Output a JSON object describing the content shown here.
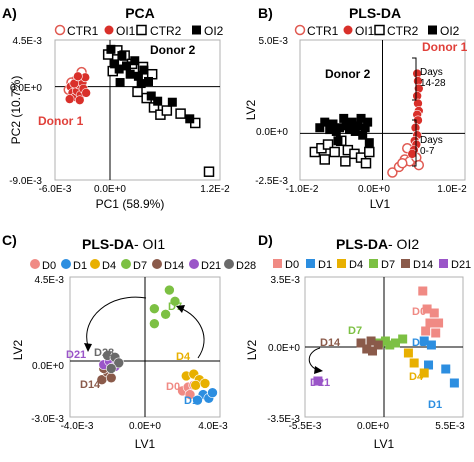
{
  "colors": {
    "ctr1": "#e05a52",
    "oi1": "#d9302a",
    "ctr2": "#000000",
    "oi2": "#000000",
    "d0": "#f08a84",
    "d1": "#2c8ee0",
    "d4": "#e8b000",
    "d7": "#7cc043",
    "d14": "#8a5a4a",
    "d21": "#9a55c8",
    "d28": "#6a6a6a",
    "donor_label": "#e0403a",
    "axis": "#000000",
    "frame": "#b0b0b0"
  },
  "chart_data": [
    {
      "panel": "A)",
      "type": "scatter",
      "title": "PCA",
      "xlabel": "PC1 (58.9%)",
      "ylabel": "PC2 (10.7%)",
      "xlim": [
        -0.006,
        0.012
      ],
      "ylim": [
        -0.009,
        0.0045
      ],
      "x_ticks": [
        "-6.0E-3",
        "0.0E+0",
        "1.2E-2"
      ],
      "y_ticks": [
        "4.5E-3",
        "0.0E+0",
        "-9.0E-3"
      ],
      "legend": [
        "CTR1",
        "OI1",
        "CTR2",
        "OI2"
      ],
      "annotations": [
        "Donor 2",
        "Donor 1"
      ],
      "series": [
        {
          "name": "CTR1",
          "marker": "circle-open",
          "color": "ctr1",
          "points": [
            [
              -0.0042,
              0.0004
            ],
            [
              -0.0036,
              0.0007
            ],
            [
              -0.0031,
              0.0014
            ],
            [
              -0.0045,
              -0.0003
            ]
          ]
        },
        {
          "name": "OI1",
          "marker": "circle",
          "color": "oi1",
          "points": [
            [
              -0.0043,
              0.0
            ],
            [
              -0.0041,
              -0.0006
            ],
            [
              -0.0038,
              -0.001
            ],
            [
              -0.0036,
              -0.0004
            ],
            [
              -0.0034,
              0.0002
            ],
            [
              -0.0032,
              -0.0008
            ],
            [
              -0.003,
              0.0004
            ],
            [
              -0.0029,
              -0.0002
            ],
            [
              -0.0027,
              0.0009
            ],
            [
              -0.0044,
              -0.0012
            ],
            [
              -0.0039,
              0.0003
            ],
            [
              -0.0035,
              0.001
            ],
            [
              -0.0026,
              -0.0006
            ],
            [
              -0.0033,
              -0.0013
            ]
          ]
        },
        {
          "name": "CTR2",
          "marker": "square-open",
          "color": "ctr2",
          "points": [
            [
              -0.0002,
              0.0031
            ],
            [
              0.0008,
              0.0035
            ],
            [
              0.0016,
              0.003
            ],
            [
              0.0024,
              0.0022
            ],
            [
              0.0036,
              0.0019
            ],
            [
              0.0046,
              0.0012
            ],
            [
              0.004,
              -0.0011
            ],
            [
              0.0048,
              -0.002
            ],
            [
              0.0055,
              -0.0027
            ],
            [
              0.0062,
              -0.0023
            ],
            [
              0.003,
              -0.0005
            ],
            [
              0.0077,
              -0.0026
            ],
            [
              0.0093,
              -0.0035
            ],
            [
              0.0108,
              -0.0082
            ],
            [
              0.0003,
              0.0015
            ]
          ]
        },
        {
          "name": "OI2",
          "marker": "square",
          "color": "oi2",
          "points": [
            [
              0.0001,
              0.0036
            ],
            [
              0.0005,
              0.0022
            ],
            [
              0.001,
              0.0017
            ],
            [
              0.0013,
              0.003
            ],
            [
              0.0018,
              0.002
            ],
            [
              0.0022,
              0.0012
            ],
            [
              0.0027,
              0.0025
            ],
            [
              0.0031,
              0.001
            ],
            [
              0.0034,
              0.0003
            ],
            [
              0.0037,
              0.0016
            ],
            [
              0.0042,
              0.0005
            ],
            [
              0.0045,
              -0.0009
            ],
            [
              0.0052,
              -0.0014
            ],
            [
              0.0068,
              -0.0015
            ],
            [
              0.0087,
              -0.0031
            ],
            [
              0.0011,
              0.0004
            ]
          ]
        }
      ]
    },
    {
      "panel": "B)",
      "type": "scatter",
      "title": "PLS-DA",
      "xlabel": "LV1",
      "ylabel": "LV2",
      "xlim": [
        -0.01,
        0.01
      ],
      "ylim": [
        -0.0025,
        0.005
      ],
      "x_ticks": [
        "-1.0E-2",
        "0.0E+0",
        "1.0E-2"
      ],
      "y_ticks": [
        "5.0E-3",
        "0.0E+0",
        "-2.5E-3"
      ],
      "legend": [
        "CTR1",
        "OI1",
        "CTR2",
        "OI2"
      ],
      "annotations": [
        "Donor 1",
        "Donor 2",
        "Days\n14-28",
        "Days\n0-7"
      ],
      "series": [
        {
          "name": "CTR1",
          "marker": "circle-open",
          "color": "ctr1",
          "points": [
            [
              0.0012,
              -0.0021
            ],
            [
              0.002,
              -0.0018
            ],
            [
              0.0027,
              -0.0014
            ],
            [
              0.0033,
              -0.0015
            ],
            [
              0.0037,
              -0.0011
            ],
            [
              0.0041,
              -0.0013
            ],
            [
              0.0044,
              -0.0017
            ],
            [
              0.003,
              -0.0008
            ],
            [
              0.0024,
              -0.0016
            ]
          ]
        },
        {
          "name": "OI1",
          "marker": "circle",
          "color": "oi1",
          "points": [
            [
              0.0042,
              0.0032
            ],
            [
              0.0043,
              0.0028
            ],
            [
              0.0044,
              0.0024
            ],
            [
              0.0042,
              0.002
            ],
            [
              0.0043,
              0.0016
            ],
            [
              0.0044,
              0.0012
            ],
            [
              0.0042,
              0.001
            ],
            [
              0.0043,
              0.0007
            ],
            [
              0.004,
              0.0003
            ],
            [
              0.0042,
              -0.0001
            ],
            [
              0.0039,
              -0.0004
            ],
            [
              0.0041,
              -0.0006
            ],
            [
              0.0038,
              -0.0009
            ],
            [
              0.0036,
              -0.0011
            ]
          ]
        },
        {
          "name": "CTR2",
          "marker": "square-open",
          "color": "ctr2",
          "points": [
            [
              -0.0082,
              -0.001
            ],
            [
              -0.0074,
              -0.0008
            ],
            [
              -0.0066,
              -0.0006
            ],
            [
              -0.0058,
              -0.001
            ],
            [
              -0.005,
              -0.0004
            ],
            [
              -0.0042,
              -0.0009
            ],
            [
              -0.0034,
              -0.0011
            ],
            [
              -0.0026,
              -0.0013
            ],
            [
              -0.002,
              -0.0016
            ],
            [
              -0.0016,
              -0.001
            ],
            [
              -0.0045,
              -0.0015
            ],
            [
              -0.007,
              -0.0014
            ]
          ]
        },
        {
          "name": "OI2",
          "marker": "square",
          "color": "oi2",
          "points": [
            [
              -0.0076,
              0.0003
            ],
            [
              -0.007,
              0.0006
            ],
            [
              -0.0064,
              0.0002
            ],
            [
              -0.006,
              0.0005
            ],
            [
              -0.0056,
              0.0001
            ],
            [
              -0.0052,
              0.0003
            ],
            [
              -0.0047,
              0.0008
            ],
            [
              -0.0044,
              0.0004
            ],
            [
              -0.004,
              0.0002
            ],
            [
              -0.0037,
              0.0006
            ],
            [
              -0.0033,
              0.0001
            ],
            [
              -0.003,
              0.0004
            ],
            [
              -0.0026,
              0.0008
            ],
            [
              -0.0024,
              -0.0001
            ],
            [
              -0.0021,
              0.0003
            ],
            [
              -0.0018,
              0.0006
            ],
            [
              -0.0016,
              -0.0005
            ],
            [
              -0.0054,
              -0.0004
            ]
          ]
        }
      ]
    },
    {
      "panel": "C)",
      "type": "scatter",
      "title": "PLS-DA",
      "title_suffix": "- OI1",
      "xlabel": "LV1",
      "ylabel": "LV2",
      "xlim": [
        -0.004,
        0.004
      ],
      "ylim": [
        -0.003,
        0.0045
      ],
      "x_ticks": [
        "-4.0E-3",
        "0.0E+0",
        "4.0E-3"
      ],
      "y_ticks": [
        "4.5E-3",
        "0.0E+0",
        "-3.0E-3"
      ],
      "legend": [
        "D0",
        "D1",
        "D4",
        "D7",
        "D14",
        "D21",
        "D28"
      ],
      "annotations": [
        "D7",
        "D21",
        "D28",
        "D14",
        "D4",
        "D0",
        "D1"
      ],
      "series": [
        {
          "name": "D0",
          "marker": "circle",
          "color": "d0",
          "points": [
            [
              0.002,
              -0.0016
            ],
            [
              0.0023,
              -0.0014
            ],
            [
              0.0026,
              -0.0013
            ],
            [
              0.0024,
              -0.0018
            ]
          ]
        },
        {
          "name": "D1",
          "marker": "circle",
          "color": "d1",
          "points": [
            [
              0.0031,
              -0.0018
            ],
            [
              0.0034,
              -0.002
            ],
            [
              0.0036,
              -0.0017
            ],
            [
              0.0028,
              -0.0021
            ]
          ]
        },
        {
          "name": "D4",
          "marker": "circle",
          "color": "d4",
          "points": [
            [
              0.0022,
              -0.0008
            ],
            [
              0.0026,
              -0.0007
            ],
            [
              0.0029,
              -0.001
            ],
            [
              0.0027,
              -0.0013
            ],
            [
              0.0032,
              -0.0012
            ]
          ]
        },
        {
          "name": "D7",
          "marker": "circle",
          "color": "d7",
          "points": [
            [
              0.0005,
              0.0028
            ],
            [
              0.0011,
              0.0025
            ],
            [
              0.0016,
              0.0032
            ],
            [
              0.0005,
              0.002
            ],
            [
              0.0013,
              0.0038
            ]
          ]
        },
        {
          "name": "D14",
          "marker": "circle",
          "color": "d14",
          "points": [
            [
              -0.0023,
              -0.001
            ],
            [
              -0.002,
              -0.0006
            ],
            [
              -0.0018,
              -0.0009
            ],
            [
              -0.0022,
              -0.0004
            ]
          ]
        },
        {
          "name": "D21",
          "marker": "circle",
          "color": "d21",
          "points": [
            [
              -0.0022,
              -0.0002
            ],
            [
              -0.0019,
              0.0
            ],
            [
              -0.0016,
              -0.0003
            ]
          ]
        },
        {
          "name": "D28",
          "marker": "circle",
          "color": "d28",
          "points": [
            [
              -0.002,
              0.0003
            ],
            [
              -0.0016,
              0.0002
            ],
            [
              -0.0014,
              -0.0001
            ],
            [
              -0.0018,
              -0.0004
            ]
          ]
        }
      ]
    },
    {
      "panel": "D)",
      "type": "scatter",
      "title": "PLS-DA",
      "title_suffix": "- OI2",
      "xlabel": "LV1",
      "ylabel": "LV2",
      "xlim": [
        -0.0055,
        0.0055
      ],
      "ylim": [
        -0.0035,
        0.0035
      ],
      "x_ticks": [
        "-5.5E-3",
        "0.0E+0",
        "5.5E-3"
      ],
      "y_ticks": [
        "3.5E-3",
        "0.0E+0",
        "-3.5E-3"
      ],
      "legend": [
        "D0",
        "D1",
        "D4",
        "D7",
        "D14",
        "D21"
      ],
      "annotations": [
        "D0",
        "D7",
        "D14",
        "D1",
        "D21",
        "D4",
        "D1"
      ],
      "series": [
        {
          "name": "D0",
          "marker": "square",
          "color": "d0",
          "points": [
            [
              0.0027,
              0.0028
            ],
            [
              0.003,
              0.0019
            ],
            [
              0.0035,
              0.0017
            ],
            [
              0.0032,
              0.0012
            ],
            [
              0.0038,
              0.0012
            ],
            [
              0.0029,
              0.0008
            ],
            [
              0.0036,
              0.0007
            ]
          ]
        },
        {
          "name": "D1",
          "marker": "square",
          "color": "d1",
          "points": [
            [
              0.0028,
              0.0003
            ],
            [
              0.0033,
              0.0001
            ],
            [
              0.0031,
              -0.0009
            ],
            [
              0.0043,
              -0.0011
            ],
            [
              0.0049,
              -0.0018
            ]
          ]
        },
        {
          "name": "D4",
          "marker": "square",
          "color": "d4",
          "points": [
            [
              0.0017,
              -0.0003
            ],
            [
              0.0021,
              -0.0008
            ],
            [
              0.0028,
              -0.0013
            ]
          ]
        },
        {
          "name": "D7",
          "marker": "square",
          "color": "d7",
          "points": [
            [
              -0.0003,
              0.0002
            ],
            [
              0.0001,
              0.0003
            ],
            [
              0.0004,
              0.0001
            ],
            [
              0.0008,
              0.0002
            ],
            [
              0.0013,
              0.0004
            ]
          ]
        },
        {
          "name": "D14",
          "marker": "square",
          "color": "d14",
          "points": [
            [
              -0.0016,
              0.0002
            ],
            [
              -0.0012,
              -0.0001
            ],
            [
              -0.0008,
              -0.0002
            ],
            [
              -0.0004,
              0.0001
            ],
            [
              -0.0009,
              0.0003
            ]
          ]
        },
        {
          "name": "D21",
          "marker": "square",
          "color": "d21",
          "points": [
            [
              -0.0046,
              -0.0017
            ]
          ]
        }
      ]
    }
  ],
  "annotation_colors": {
    "A": [
      "#000000",
      "#e0403a"
    ],
    "B": [
      "#e0403a",
      "#000000",
      "#000000",
      "#000000"
    ],
    "C": [
      "#7cc043",
      "#9a55c8",
      "#6a6a6a",
      "#8a5a4a",
      "#e8b000",
      "#f08a84",
      "#2c8ee0"
    ],
    "D": [
      "#f08a84",
      "#7cc043",
      "#8a5a4a",
      "#2c8ee0",
      "#9a55c8",
      "#e8b000",
      "#2c8ee0"
    ]
  }
}
